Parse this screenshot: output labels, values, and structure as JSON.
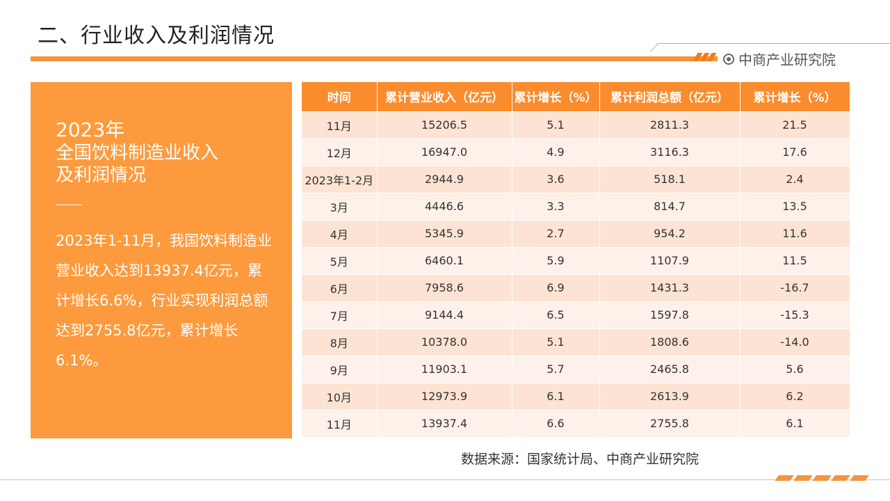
{
  "header": {
    "title": "二、行业收入及利润情况",
    "brand": "中商产业研究院"
  },
  "panel": {
    "year": "2023年",
    "heading_line1": "全国饮料制造业收入",
    "heading_line2": "及利润情况",
    "paragraph": "2023年1-11月，我国饮料制造业营业收入达到13937.4亿元，累计增长6.6%，行业实现利润总额达到2755.8亿元，累计增长6.1%。"
  },
  "table": {
    "headers": [
      "时间",
      "累计营业收入（亿元）",
      "累计增长（%）",
      "累计利润总额（亿元）",
      "累计增长（%）"
    ],
    "rows": [
      [
        "11月",
        "15206.5",
        "5.1",
        "2811.3",
        "21.5"
      ],
      [
        "12月",
        "16947.0",
        "4.9",
        "3116.3",
        "17.6"
      ],
      [
        "2023年1-2月",
        "2944.9",
        "3.6",
        "518.1",
        "2.4"
      ],
      [
        "3月",
        "4446.6",
        "3.3",
        "814.7",
        "13.5"
      ],
      [
        "4月",
        "5345.9",
        "2.7",
        "954.2",
        "11.6"
      ],
      [
        "5月",
        "6460.1",
        "5.9",
        "1107.9",
        "11.5"
      ],
      [
        "6月",
        "7958.6",
        "6.9",
        "1431.3",
        "-16.7"
      ],
      [
        "7月",
        "9144.4",
        "6.5",
        "1597.8",
        "-15.3"
      ],
      [
        "8月",
        "10378.0",
        "5.1",
        "1808.6",
        "-14.0"
      ],
      [
        "9月",
        "11903.1",
        "5.7",
        "2465.8",
        "5.6"
      ],
      [
        "10月",
        "12973.9",
        "6.1",
        "2613.9",
        "6.2"
      ],
      [
        "11月",
        "13937.4",
        "6.6",
        "2755.8",
        "6.1"
      ]
    ]
  },
  "footer": {
    "source": "数据来源：国家统计局、中商产业研究院"
  },
  "colors": {
    "accent": "#fd9a3d",
    "table_header": "#fb8c2d",
    "row_odd": "#fde3d3",
    "row_even": "#fef1e9"
  }
}
